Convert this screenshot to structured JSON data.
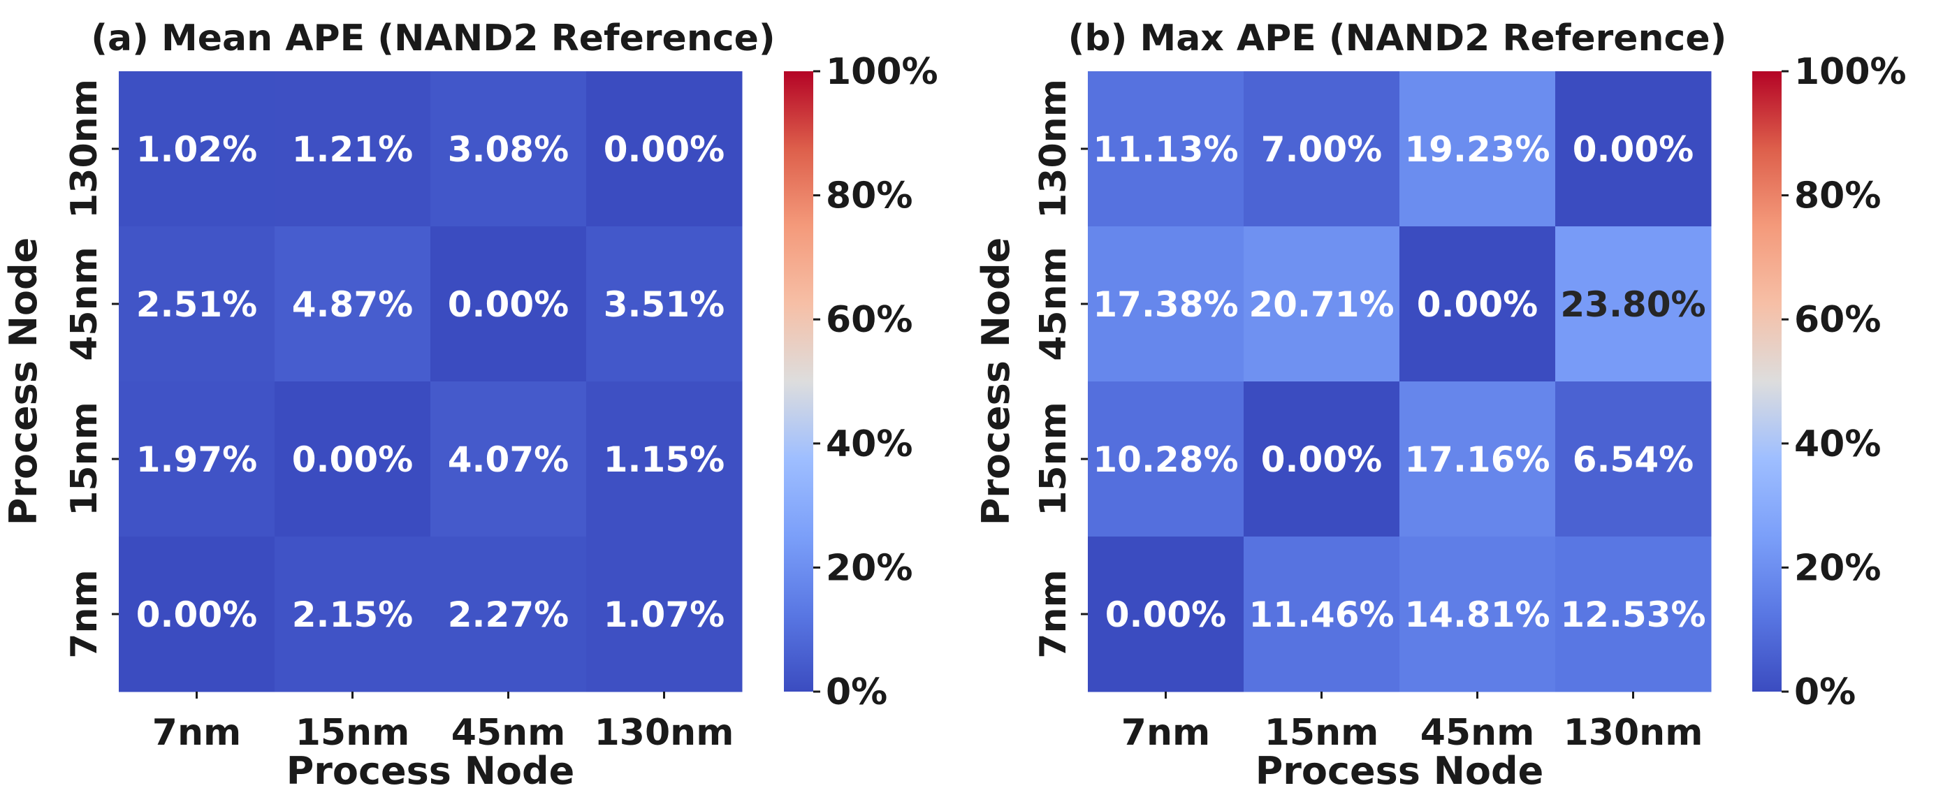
{
  "chart_data": [
    {
      "type": "heatmap",
      "title": "(a) Mean APE (NAND2 Reference)",
      "xlabel": "Process Node",
      "ylabel": "Process Node",
      "x_categories": [
        "7nm",
        "15nm",
        "45nm",
        "130nm"
      ],
      "y_categories": [
        "130nm",
        "45nm",
        "15nm",
        "7nm"
      ],
      "values": [
        [
          1.02,
          1.21,
          3.08,
          0.0
        ],
        [
          2.51,
          4.87,
          0.0,
          3.51
        ],
        [
          1.97,
          0.0,
          4.07,
          1.15
        ],
        [
          0.0,
          2.15,
          2.27,
          1.07
        ]
      ],
      "value_labels": [
        [
          "1.02%",
          "1.21%",
          "3.08%",
          "0.00%"
        ],
        [
          "2.51%",
          "4.87%",
          "0.00%",
          "3.51%"
        ],
        [
          "1.97%",
          "0.00%",
          "4.07%",
          "1.15%"
        ],
        [
          "0.00%",
          "2.15%",
          "2.27%",
          "1.07%"
        ]
      ],
      "colorbar": {
        "colormap": "coolwarm",
        "range": [
          0,
          100
        ],
        "ticks": [
          0,
          20,
          40,
          60,
          80,
          100
        ],
        "tick_labels": [
          "0%",
          "20%",
          "40%",
          "60%",
          "80%",
          "100%"
        ]
      }
    },
    {
      "type": "heatmap",
      "title": "(b) Max APE (NAND2 Reference)",
      "xlabel": "Process Node",
      "ylabel": "Process Node",
      "x_categories": [
        "7nm",
        "15nm",
        "45nm",
        "130nm"
      ],
      "y_categories": [
        "130nm",
        "45nm",
        "15nm",
        "7nm"
      ],
      "values": [
        [
          11.13,
          7.0,
          19.23,
          0.0
        ],
        [
          17.38,
          20.71,
          0.0,
          23.8
        ],
        [
          10.28,
          0.0,
          17.16,
          6.54
        ],
        [
          0.0,
          11.46,
          14.81,
          12.53
        ]
      ],
      "value_labels": [
        [
          "11.13%",
          "7.00%",
          "19.23%",
          "0.00%"
        ],
        [
          "17.38%",
          "20.71%",
          "0.00%",
          "23.80%"
        ],
        [
          "10.28%",
          "0.00%",
          "17.16%",
          "6.54%"
        ],
        [
          "0.00%",
          "11.46%",
          "14.81%",
          "12.53%"
        ]
      ],
      "colorbar": {
        "colormap": "coolwarm",
        "range": [
          0,
          100
        ],
        "ticks": [
          0,
          20,
          40,
          60,
          80,
          100
        ],
        "tick_labels": [
          "0%",
          "20%",
          "40%",
          "60%",
          "80%",
          "100%"
        ]
      }
    }
  ],
  "colors": {
    "cool_end": "#3b4cc0",
    "mid": "#dddddd",
    "warm_end": "#b40426",
    "text_light": "#ffffff",
    "text_dark": "#262626"
  }
}
